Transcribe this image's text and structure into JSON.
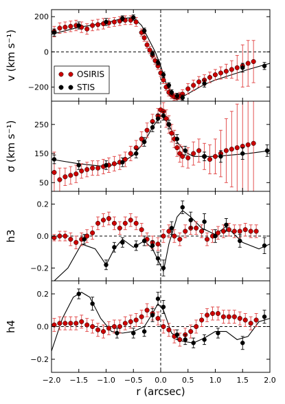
{
  "colors": {
    "osiris": "#cc0000",
    "osiris_err": "#e04040",
    "stis": "#000000",
    "model": "#000000"
  },
  "legend": {
    "placement": "lower-left of top panel",
    "entries": [
      "OSIRIS",
      "STIS"
    ]
  },
  "chart_data": [
    {
      "type": "scatter",
      "panel": "velocity",
      "ylabel": "v (km s⁻¹)",
      "xlim": [
        -2.0,
        2.0
      ],
      "ylim": [
        -280,
        240
      ],
      "yticks": [
        -200,
        0,
        200
      ],
      "ytick_labels": [
        "−200",
        "0",
        "200"
      ],
      "zero_line": 0,
      "series": [
        {
          "name": "OSIRIS",
          "x": [
            -1.95,
            -1.85,
            -1.75,
            -1.65,
            -1.55,
            -1.45,
            -1.35,
            -1.25,
            -1.15,
            -1.05,
            -0.95,
            -0.85,
            -0.75,
            -0.65,
            -0.55,
            -0.45,
            -0.35,
            -0.3,
            -0.25,
            -0.2,
            -0.15,
            -0.1,
            -0.05,
            0.0,
            0.05,
            0.1,
            0.15,
            0.2,
            0.25,
            0.3,
            0.35,
            0.4,
            0.5,
            0.6,
            0.7,
            0.8,
            0.9,
            1.0,
            1.1,
            1.2,
            1.3,
            1.4,
            1.5,
            1.6,
            1.7
          ],
          "y": [
            115,
            135,
            140,
            145,
            150,
            140,
            130,
            150,
            155,
            160,
            165,
            170,
            175,
            180,
            180,
            170,
            110,
            80,
            40,
            10,
            -20,
            -50,
            -80,
            -120,
            -160,
            -200,
            -230,
            -245,
            -255,
            -260,
            -250,
            -240,
            -210,
            -190,
            -170,
            -160,
            -145,
            -130,
            -120,
            -110,
            -100,
            -90,
            -80,
            -65,
            -55
          ],
          "err": [
            30,
            30,
            30,
            30,
            30,
            30,
            30,
            30,
            30,
            30,
            25,
            25,
            25,
            25,
            25,
            25,
            20,
            20,
            20,
            20,
            20,
            20,
            20,
            20,
            20,
            20,
            20,
            20,
            20,
            20,
            20,
            25,
            30,
            30,
            30,
            30,
            30,
            30,
            35,
            40,
            50,
            70,
            120,
            130,
            120
          ]
        },
        {
          "name": "STIS",
          "x": [
            -1.95,
            -1.5,
            -1.0,
            -0.7,
            -0.5,
            -0.3,
            -0.15,
            -0.05,
            0.05,
            0.15,
            0.2,
            0.3,
            0.4,
            0.8,
            1.5,
            1.9
          ],
          "y": [
            110,
            150,
            170,
            190,
            195,
            120,
            -10,
            -60,
            -130,
            -190,
            -230,
            -250,
            -260,
            -180,
            -90,
            -80
          ],
          "err": [
            20,
            20,
            20,
            15,
            15,
            15,
            15,
            15,
            15,
            15,
            15,
            15,
            15,
            20,
            25,
            20
          ]
        }
      ],
      "model": {
        "x": [
          -2.0,
          -1.5,
          -1.0,
          -0.7,
          -0.5,
          -0.35,
          -0.2,
          -0.1,
          0.0,
          0.1,
          0.2,
          0.3,
          0.4,
          0.6,
          0.8,
          1.0,
          1.3,
          1.6,
          2.0
        ],
        "y": [
          100,
          140,
          165,
          190,
          195,
          150,
          60,
          0,
          -80,
          -180,
          -240,
          -260,
          -255,
          -220,
          -185,
          -160,
          -130,
          -100,
          -65
        ]
      }
    },
    {
      "type": "scatter",
      "panel": "dispersion",
      "ylabel": "σ (km s⁻¹)",
      "xlim": [
        -2.0,
        2.0
      ],
      "ylim": [
        20,
        330
      ],
      "yticks": [
        50,
        150,
        250
      ],
      "ytick_labels": [
        "50",
        "150",
        "250"
      ],
      "series": [
        {
          "name": "OSIRIS",
          "x": [
            -1.95,
            -1.85,
            -1.75,
            -1.65,
            -1.55,
            -1.45,
            -1.35,
            -1.25,
            -1.15,
            -1.05,
            -0.95,
            -0.85,
            -0.75,
            -0.65,
            -0.55,
            -0.45,
            -0.35,
            -0.25,
            -0.15,
            -0.05,
            0.0,
            0.05,
            0.1,
            0.15,
            0.2,
            0.25,
            0.3,
            0.35,
            0.4,
            0.5,
            0.6,
            0.7,
            0.8,
            0.9,
            1.0,
            1.1,
            1.2,
            1.3,
            1.4,
            1.5,
            1.6,
            1.7
          ],
          "y": [
            85,
            60,
            70,
            75,
            80,
            90,
            95,
            100,
            100,
            105,
            110,
            115,
            120,
            130,
            150,
            170,
            200,
            230,
            260,
            280,
            300,
            295,
            270,
            250,
            220,
            200,
            170,
            150,
            140,
            135,
            150,
            160,
            140,
            130,
            140,
            150,
            160,
            165,
            170,
            175,
            180,
            185
          ],
          "err": [
            70,
            40,
            30,
            30,
            30,
            25,
            25,
            25,
            25,
            25,
            25,
            25,
            25,
            25,
            25,
            25,
            25,
            25,
            25,
            25,
            30,
            30,
            30,
            30,
            30,
            30,
            30,
            30,
            35,
            35,
            40,
            40,
            45,
            50,
            60,
            80,
            110,
            130,
            150,
            180,
            200,
            200
          ]
        },
        {
          "name": "STIS",
          "x": [
            -1.95,
            -1.5,
            -1.0,
            -0.7,
            -0.45,
            -0.3,
            -0.15,
            -0.05,
            0.05,
            0.15,
            0.3,
            0.45,
            0.8,
            1.1,
            1.5,
            1.95
          ],
          "y": [
            130,
            110,
            110,
            120,
            150,
            190,
            240,
            270,
            280,
            250,
            200,
            160,
            140,
            140,
            150,
            160
          ],
          "err": [
            15,
            15,
            15,
            15,
            15,
            15,
            15,
            15,
            15,
            15,
            15,
            15,
            15,
            20,
            20,
            20
          ]
        }
      ],
      "model": {
        "x": [
          -2.0,
          -1.5,
          -1.0,
          -0.7,
          -0.5,
          -0.3,
          -0.15,
          0.0,
          0.1,
          0.2,
          0.3,
          0.45,
          0.6,
          0.8,
          1.0,
          1.3,
          1.6,
          2.0
        ],
        "y": [
          130,
          115,
          105,
          120,
          145,
          190,
          240,
          280,
          265,
          230,
          190,
          155,
          140,
          140,
          140,
          145,
          150,
          160
        ]
      }
    },
    {
      "type": "scatter",
      "panel": "h3",
      "ylabel": "h3",
      "xlim": [
        -2.0,
        2.0
      ],
      "ylim": [
        -0.28,
        0.28
      ],
      "yticks": [
        -0.2,
        0.0,
        0.2
      ],
      "ytick_labels": [
        "−0.2",
        "0.0",
        "0.2"
      ],
      "zero_line": 0,
      "series": [
        {
          "name": "OSIRIS",
          "x": [
            -1.95,
            -1.85,
            -1.75,
            -1.65,
            -1.55,
            -1.45,
            -1.35,
            -1.25,
            -1.15,
            -1.05,
            -0.95,
            -0.85,
            -0.75,
            -0.65,
            -0.55,
            -0.45,
            -0.35,
            -0.25,
            -0.15,
            -0.05,
            0.05,
            0.15,
            0.25,
            0.35,
            0.45,
            0.55,
            0.65,
            0.75,
            0.85,
            0.95,
            1.05,
            1.15,
            1.25,
            1.35,
            1.45,
            1.55,
            1.65,
            1.75
          ],
          "y": [
            -0.01,
            0.0,
            0.0,
            -0.02,
            -0.04,
            -0.02,
            0.0,
            0.02,
            0.08,
            0.1,
            0.11,
            0.08,
            0.05,
            0.08,
            0.1,
            0.08,
            0.04,
            -0.02,
            -0.04,
            -0.05,
            0.0,
            0.03,
            0.0,
            -0.02,
            0.03,
            0.05,
            0.05,
            0.03,
            -0.02,
            0.0,
            0.02,
            0.03,
            0.04,
            0.03,
            0.03,
            0.04,
            0.03,
            0.03
          ],
          "err": [
            0.02,
            0.03,
            0.03,
            0.04,
            0.04,
            0.04,
            0.04,
            0.04,
            0.04,
            0.04,
            0.04,
            0.04,
            0.04,
            0.04,
            0.04,
            0.04,
            0.04,
            0.04,
            0.04,
            0.04,
            0.04,
            0.04,
            0.04,
            0.04,
            0.04,
            0.04,
            0.04,
            0.04,
            0.04,
            0.04,
            0.04,
            0.04,
            0.04,
            0.04,
            0.04,
            0.04,
            0.04,
            0.04
          ]
        },
        {
          "name": "STIS",
          "x": [
            -1.4,
            -1.0,
            -0.85,
            -0.7,
            -0.45,
            -0.3,
            -0.15,
            -0.05,
            0.05,
            0.2,
            0.4,
            0.55,
            0.8,
            1.0,
            1.2,
            1.45,
            1.9
          ],
          "y": [
            -0.02,
            -0.18,
            -0.07,
            -0.04,
            -0.06,
            -0.03,
            -0.06,
            -0.14,
            -0.2,
            0.05,
            0.18,
            0.1,
            0.09,
            0.0,
            0.07,
            -0.03,
            -0.06
          ],
          "err": [
            0.03,
            0.03,
            0.03,
            0.03,
            0.03,
            0.03,
            0.03,
            0.04,
            0.05,
            0.04,
            0.04,
            0.05,
            0.05,
            0.04,
            0.04,
            0.04,
            0.05
          ]
        }
      ],
      "model": {
        "x": [
          -1.95,
          -1.7,
          -1.45,
          -1.2,
          -1.0,
          -0.85,
          -0.7,
          -0.5,
          -0.3,
          -0.15,
          -0.05,
          0.05,
          0.15,
          0.3,
          0.4,
          0.55,
          0.75,
          1.0,
          1.2,
          1.5,
          1.8,
          2.0
        ],
        "y": [
          -0.28,
          -0.2,
          -0.05,
          -0.08,
          -0.18,
          -0.08,
          -0.02,
          -0.07,
          -0.03,
          -0.08,
          -0.15,
          -0.22,
          -0.05,
          0.12,
          0.16,
          0.12,
          0.05,
          0.01,
          0.06,
          -0.04,
          -0.08,
          -0.05
        ]
      }
    },
    {
      "type": "scatter",
      "panel": "h4",
      "ylabel": "h4",
      "xlabel": "r (arcsec)",
      "xlim": [
        -2.0,
        2.0
      ],
      "ylim": [
        -0.28,
        0.28
      ],
      "yticks": [
        -0.2,
        0.0,
        0.2
      ],
      "ytick_labels": [
        "−0.2",
        "0.0",
        "0.2"
      ],
      "xticks": [
        -2.0,
        -1.5,
        -1.0,
        -0.5,
        0.0,
        0.5,
        1.0,
        1.5,
        2.0
      ],
      "xtick_labels": [
        "−2.0",
        "−1.5",
        "−1.0",
        "−0.5",
        "0.0",
        "0.5",
        "1.0",
        "1.5",
        "2.0"
      ],
      "zero_line": 0,
      "series": [
        {
          "name": "OSIRIS",
          "x": [
            -1.95,
            -1.85,
            -1.75,
            -1.65,
            -1.55,
            -1.45,
            -1.35,
            -1.25,
            -1.15,
            -1.05,
            -0.95,
            -0.85,
            -0.75,
            -0.65,
            -0.55,
            -0.45,
            -0.35,
            -0.25,
            -0.15,
            -0.05,
            0.05,
            0.15,
            0.25,
            0.35,
            0.45,
            0.55,
            0.65,
            0.75,
            0.85,
            0.95,
            1.05,
            1.15,
            1.25,
            1.35,
            1.45,
            1.55,
            1.65,
            1.75
          ],
          "y": [
            0.01,
            0.02,
            0.02,
            0.02,
            0.02,
            0.03,
            0.01,
            0.0,
            -0.02,
            -0.03,
            -0.01,
            0.0,
            0.0,
            0.02,
            0.03,
            0.04,
            0.06,
            0.1,
            0.08,
            0.05,
            0.0,
            -0.02,
            -0.06,
            -0.08,
            -0.05,
            -0.03,
            0.0,
            0.04,
            0.07,
            0.08,
            0.08,
            0.06,
            0.06,
            0.06,
            0.05,
            0.04,
            0.02,
            0.04
          ],
          "err": [
            0.04,
            0.04,
            0.04,
            0.04,
            0.04,
            0.04,
            0.04,
            0.04,
            0.04,
            0.04,
            0.04,
            0.04,
            0.04,
            0.04,
            0.04,
            0.04,
            0.04,
            0.04,
            0.04,
            0.04,
            0.04,
            0.04,
            0.04,
            0.04,
            0.04,
            0.04,
            0.04,
            0.04,
            0.04,
            0.04,
            0.04,
            0.04,
            0.04,
            0.04,
            0.04,
            0.04,
            0.04,
            0.04
          ]
        },
        {
          "name": "STIS",
          "x": [
            -1.5,
            -1.25,
            -0.8,
            -0.5,
            -0.3,
            -0.15,
            -0.05,
            0.05,
            0.3,
            0.45,
            0.6,
            0.8,
            1.05,
            1.5,
            1.9
          ],
          "y": [
            0.2,
            0.14,
            -0.04,
            -0.04,
            -0.03,
            0.07,
            0.17,
            0.12,
            -0.05,
            -0.08,
            -0.1,
            -0.08,
            -0.04,
            -0.1,
            0.06
          ],
          "err": [
            0.03,
            0.04,
            0.03,
            0.03,
            0.03,
            0.04,
            0.04,
            0.04,
            0.03,
            0.03,
            0.03,
            0.03,
            0.03,
            0.04,
            0.04
          ]
        }
      ],
      "model": {
        "x": [
          -2.0,
          -1.8,
          -1.6,
          -1.45,
          -1.3,
          -1.1,
          -0.9,
          -0.7,
          -0.5,
          -0.3,
          -0.15,
          -0.05,
          0.05,
          0.2,
          0.4,
          0.6,
          0.8,
          1.0,
          1.2,
          1.4,
          1.6,
          1.8,
          2.0
        ],
        "y": [
          -0.15,
          0.05,
          0.18,
          0.21,
          0.18,
          0.05,
          -0.03,
          -0.04,
          -0.03,
          0.0,
          0.08,
          0.14,
          0.1,
          -0.04,
          -0.09,
          -0.1,
          -0.07,
          -0.03,
          -0.03,
          -0.08,
          -0.06,
          0.03,
          0.05
        ]
      }
    }
  ]
}
